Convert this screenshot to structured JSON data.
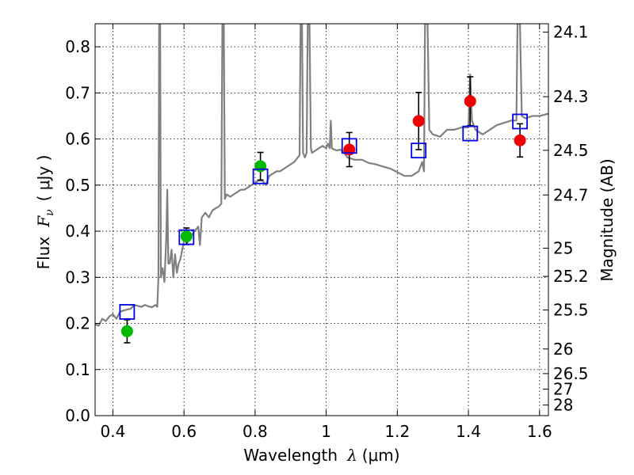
{
  "chart_data": {
    "type": "scatter",
    "xlabel": "Wavelength",
    "xlabel_symbol": "λ",
    "xlabel_unit": "(μm)",
    "ylabel": "Flux",
    "ylabel_symbol": "F",
    "ylabel_subscript": "ν",
    "ylabel_unit": "( μJy )",
    "y2label": "Magnitude (AB)",
    "xlim": [
      0.35,
      1.625
    ],
    "ylim": [
      0.0,
      0.85
    ],
    "grid": true,
    "xticks": [
      0.4,
      0.6,
      0.8,
      1.0,
      1.2,
      1.4,
      1.6
    ],
    "xtick_labels": [
      "0.4",
      "0.6",
      "0.8",
      "1",
      "1.2",
      "1.4",
      "1.6"
    ],
    "yticks": [
      0.0,
      0.1,
      0.2,
      0.3,
      0.4,
      0.5,
      0.6,
      0.7,
      0.8
    ],
    "ytick_labels": [
      "0.0",
      "0.1",
      "0.2",
      "0.3",
      "0.4",
      "0.5",
      "0.6",
      "0.7",
      "0.8"
    ],
    "y2ticks": [
      {
        "mag": 24.1,
        "label": "24.1"
      },
      {
        "mag": 24.3,
        "label": "24.3"
      },
      {
        "mag": 24.5,
        "label": "24.5"
      },
      {
        "mag": 24.7,
        "label": "24.7"
      },
      {
        "mag": 25.0,
        "label": "25"
      },
      {
        "mag": 25.2,
        "label": "25.2"
      },
      {
        "mag": 25.5,
        "label": "25.5"
      },
      {
        "mag": 26.0,
        "label": "26"
      },
      {
        "mag": 26.5,
        "label": "26.5"
      },
      {
        "mag": 27.0,
        "label": "27"
      },
      {
        "mag": 28.0,
        "label": "28"
      }
    ],
    "series": [
      {
        "name": "model spectrum",
        "kind": "line",
        "color": "#808080",
        "points": [
          [
            0.35,
            0.198
          ],
          [
            0.36,
            0.195
          ],
          [
            0.37,
            0.21
          ],
          [
            0.38,
            0.205
          ],
          [
            0.39,
            0.215
          ],
          [
            0.4,
            0.22
          ],
          [
            0.41,
            0.21
          ],
          [
            0.42,
            0.225
          ],
          [
            0.43,
            0.228
          ],
          [
            0.44,
            0.23
          ],
          [
            0.45,
            0.232
          ],
          [
            0.46,
            0.24
          ],
          [
            0.47,
            0.238
          ],
          [
            0.48,
            0.236
          ],
          [
            0.49,
            0.24
          ],
          [
            0.5,
            0.237
          ],
          [
            0.51,
            0.235
          ],
          [
            0.52,
            0.24
          ],
          [
            0.525,
            0.236
          ],
          [
            0.528,
            0.3
          ],
          [
            0.53,
            0.85
          ],
          [
            0.533,
            0.85
          ],
          [
            0.535,
            0.3
          ],
          [
            0.54,
            0.32
          ],
          [
            0.545,
            0.29
          ],
          [
            0.55,
            0.38
          ],
          [
            0.553,
            0.49
          ],
          [
            0.556,
            0.33
          ],
          [
            0.56,
            0.33
          ],
          [
            0.565,
            0.36
          ],
          [
            0.57,
            0.3
          ],
          [
            0.575,
            0.35
          ],
          [
            0.58,
            0.31
          ],
          [
            0.585,
            0.33
          ],
          [
            0.59,
            0.34
          ],
          [
            0.595,
            0.36
          ],
          [
            0.6,
            0.38
          ],
          [
            0.61,
            0.375
          ],
          [
            0.62,
            0.39
          ],
          [
            0.63,
            0.4
          ],
          [
            0.64,
            0.41
          ],
          [
            0.645,
            0.37
          ],
          [
            0.65,
            0.43
          ],
          [
            0.66,
            0.44
          ],
          [
            0.67,
            0.43
          ],
          [
            0.68,
            0.445
          ],
          [
            0.69,
            0.45
          ],
          [
            0.7,
            0.455
          ],
          [
            0.705,
            0.46
          ],
          [
            0.708,
            0.85
          ],
          [
            0.712,
            0.85
          ],
          [
            0.715,
            0.47
          ],
          [
            0.72,
            0.48
          ],
          [
            0.73,
            0.475
          ],
          [
            0.74,
            0.48
          ],
          [
            0.75,
            0.485
          ],
          [
            0.76,
            0.49
          ],
          [
            0.77,
            0.49
          ],
          [
            0.78,
            0.495
          ],
          [
            0.79,
            0.5
          ],
          [
            0.8,
            0.505
          ],
          [
            0.81,
            0.51
          ],
          [
            0.82,
            0.51
          ],
          [
            0.83,
            0.5
          ],
          [
            0.84,
            0.52
          ],
          [
            0.85,
            0.525
          ],
          [
            0.86,
            0.53
          ],
          [
            0.87,
            0.53
          ],
          [
            0.88,
            0.535
          ],
          [
            0.89,
            0.54
          ],
          [
            0.9,
            0.545
          ],
          [
            0.91,
            0.55
          ],
          [
            0.92,
            0.56
          ],
          [
            0.925,
            0.565
          ],
          [
            0.928,
            0.85
          ],
          [
            0.932,
            0.85
          ],
          [
            0.935,
            0.57
          ],
          [
            0.94,
            0.56
          ],
          [
            0.945,
            0.57
          ],
          [
            0.948,
            0.85
          ],
          [
            0.953,
            0.85
          ],
          [
            0.957,
            0.58
          ],
          [
            0.96,
            0.57
          ],
          [
            0.97,
            0.575
          ],
          [
            0.98,
            0.58
          ],
          [
            0.99,
            0.585
          ],
          [
            1.0,
            0.58
          ],
          [
            1.005,
            0.59
          ],
          [
            1.01,
            0.58
          ],
          [
            1.013,
            0.64
          ],
          [
            1.016,
            0.58
          ],
          [
            1.02,
            0.578
          ],
          [
            1.03,
            0.575
          ],
          [
            1.04,
            0.577
          ],
          [
            1.05,
            0.57
          ],
          [
            1.06,
            0.56
          ],
          [
            1.08,
            0.555
          ],
          [
            1.1,
            0.555
          ],
          [
            1.12,
            0.548
          ],
          [
            1.14,
            0.545
          ],
          [
            1.16,
            0.54
          ],
          [
            1.18,
            0.536
          ],
          [
            1.2,
            0.528
          ],
          [
            1.22,
            0.52
          ],
          [
            1.24,
            0.52
          ],
          [
            1.26,
            0.53
          ],
          [
            1.27,
            0.55
          ],
          [
            1.275,
            0.53
          ],
          [
            1.278,
            0.85
          ],
          [
            1.285,
            0.85
          ],
          [
            1.29,
            0.62
          ],
          [
            1.3,
            0.61
          ],
          [
            1.32,
            0.605
          ],
          [
            1.34,
            0.62
          ],
          [
            1.36,
            0.62
          ],
          [
            1.38,
            0.625
          ],
          [
            1.4,
            0.625
          ],
          [
            1.405,
            0.74
          ],
          [
            1.41,
            0.64
          ],
          [
            1.42,
            0.62
          ],
          [
            1.44,
            0.61
          ],
          [
            1.46,
            0.62
          ],
          [
            1.48,
            0.63
          ],
          [
            1.5,
            0.635
          ],
          [
            1.52,
            0.64
          ],
          [
            1.535,
            0.64
          ],
          [
            1.538,
            0.85
          ],
          [
            1.545,
            0.85
          ],
          [
            1.55,
            0.65
          ],
          [
            1.56,
            0.645
          ],
          [
            1.58,
            0.65
          ],
          [
            1.6,
            0.65
          ],
          [
            1.625,
            0.655
          ]
        ]
      },
      {
        "name": "observed (green)",
        "kind": "points",
        "color": "#00bb00",
        "points": [
          {
            "x": 0.44,
            "y": 0.183,
            "err": 0.025
          },
          {
            "x": 0.607,
            "y": 0.389,
            "err": 0.018
          },
          {
            "x": 0.815,
            "y": 0.541,
            "err": 0.03
          }
        ]
      },
      {
        "name": "observed (red)",
        "kind": "points",
        "color": "#ee0000",
        "points": [
          {
            "x": 1.065,
            "y": 0.577,
            "err": 0.037
          },
          {
            "x": 1.26,
            "y": 0.639,
            "err": 0.062
          },
          {
            "x": 1.405,
            "y": 0.682,
            "err": 0.053
          },
          {
            "x": 1.545,
            "y": 0.597,
            "err": 0.036
          }
        ]
      },
      {
        "name": "model photometry",
        "kind": "squares",
        "color": "#0000ee",
        "points": [
          {
            "x": 0.44,
            "y": 0.225
          },
          {
            "x": 0.607,
            "y": 0.387
          },
          {
            "x": 0.815,
            "y": 0.519
          },
          {
            "x": 1.065,
            "y": 0.585
          },
          {
            "x": 1.26,
            "y": 0.575
          },
          {
            "x": 1.405,
            "y": 0.612
          },
          {
            "x": 1.545,
            "y": 0.638
          }
        ]
      }
    ]
  }
}
